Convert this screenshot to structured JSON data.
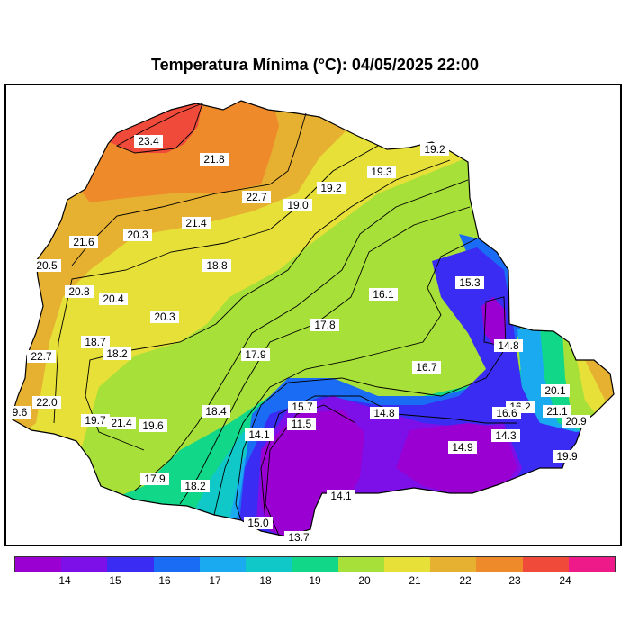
{
  "title": "Temperatura Mínima (°C): 04/05/2025 22:00",
  "legend": {
    "colors": [
      "#9b00d3",
      "#7d10e8",
      "#3a2cf2",
      "#1a6cf5",
      "#1aaaf0",
      "#10c8c8",
      "#10d888",
      "#a6e038",
      "#e6e038",
      "#e6b030",
      "#ee8a2a",
      "#f04a3a",
      "#ee1a8a"
    ],
    "ticks": [
      "14",
      "15",
      "16",
      "17",
      "18",
      "19",
      "20",
      "21",
      "22",
      "23",
      "24"
    ]
  },
  "values": [
    {
      "t": "23.4"
    },
    {
      "t": "21.8"
    },
    {
      "t": "19.2"
    },
    {
      "t": "19.3"
    },
    {
      "t": "19.2"
    },
    {
      "t": "22.7"
    },
    {
      "t": "19.0"
    },
    {
      "t": "21.4"
    },
    {
      "t": "21.6"
    },
    {
      "t": "20.3"
    },
    {
      "t": "20.5"
    },
    {
      "t": "18.8"
    },
    {
      "t": "15.3"
    },
    {
      "t": "16.1"
    },
    {
      "t": "20.8"
    },
    {
      "t": "20.4"
    },
    {
      "t": "20.3"
    },
    {
      "t": "17.8"
    },
    {
      "t": "14.8"
    },
    {
      "t": "18.7"
    },
    {
      "t": "18.2"
    },
    {
      "t": "17.9"
    },
    {
      "t": "16.7"
    },
    {
      "t": "22.7"
    },
    {
      "t": "20.1"
    },
    {
      "t": "15.7"
    },
    {
      "t": "22.0"
    },
    {
      "t": "16.2"
    },
    {
      "t": "18.4"
    },
    {
      "t": "14.8"
    },
    {
      "t": "16.6"
    },
    {
      "t": "21.1"
    },
    {
      "t": "9.6"
    },
    {
      "t": "19.7"
    },
    {
      "t": "21.4"
    },
    {
      "t": "19.6"
    },
    {
      "t": "11.5"
    },
    {
      "t": "20.9"
    },
    {
      "t": "14.1"
    },
    {
      "t": "14.3"
    },
    {
      "t": "14.9"
    },
    {
      "t": "19.9"
    },
    {
      "t": "17.9"
    },
    {
      "t": "18.2"
    },
    {
      "t": "14.1"
    },
    {
      "t": "15.0"
    },
    {
      "t": "13.7"
    }
  ]
}
